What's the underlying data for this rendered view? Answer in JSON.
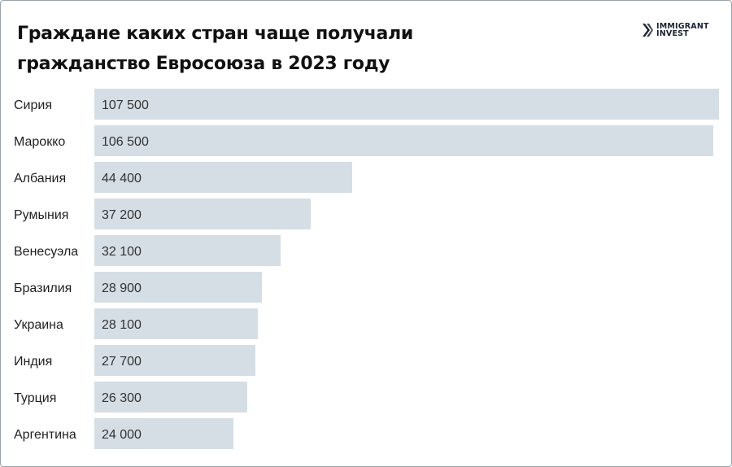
{
  "title": "Граждане каких стран чаще получали гражданство Евросоюза в 2023 году",
  "logo": {
    "line1": "IMMIGRANT",
    "line2": "INVEST"
  },
  "colors": {
    "bar": "#d5dee4",
    "text": "#1f1f1f",
    "border": "#9aa2ab"
  },
  "chart_data": {
    "type": "bar",
    "orientation": "horizontal",
    "title": "Граждане каких стран чаще получали гражданство Евросоюза в 2023 году",
    "categories": [
      "Сирия",
      "Марокко",
      "Албания",
      "Румыния",
      "Венесуэла",
      "Бразилия",
      "Украина",
      "Индия",
      "Турция",
      "Аргентина"
    ],
    "values": [
      107500,
      106500,
      44400,
      37200,
      32100,
      28900,
      28100,
      27700,
      26300,
      24000
    ],
    "value_labels": [
      "107 500",
      "106 500",
      "44 400",
      "37 200",
      "32 100",
      "28 900",
      "28 100",
      "27 700",
      "26 300",
      "24 000"
    ],
    "xlim": [
      0,
      107500
    ],
    "grid": false,
    "legend": "none"
  }
}
